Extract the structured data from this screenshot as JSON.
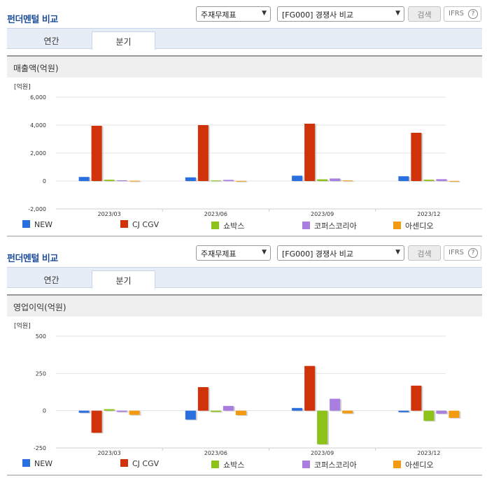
{
  "colors": {
    "NEW": "#2a6fe0",
    "CJ CGV": "#d0320a",
    "쇼박스": "#8cc21a",
    "코퍼스코리아": "#a97ee0",
    "아센디오": "#f29a10"
  },
  "panels": [
    {
      "title": "펀더멘털 비교",
      "select_item": "주재무제표",
      "select_compare": "[FG000] 경쟁사 비교",
      "search_label": "검색",
      "ifrs_label": "IFRS",
      "help_glyph": "?",
      "tabs": [
        "연간",
        "분기"
      ],
      "active_tab": "분기",
      "chart_heading": "매출액(억원)",
      "unit_label": "[억원]"
    },
    {
      "title": "펀더멘털 비교",
      "select_item": "주재무제표",
      "select_compare": "[FG000] 경쟁사 비교",
      "search_label": "검색",
      "ifrs_label": "IFRS",
      "help_glyph": "?",
      "tabs": [
        "연간",
        "분기"
      ],
      "active_tab": "분기",
      "chart_heading": "영업이익(억원)",
      "unit_label": "[억원]"
    }
  ],
  "chart_data": [
    {
      "type": "bar",
      "title": "매출액(억원)",
      "unit": "[억원]",
      "categories": [
        "2023/03",
        "2023/06",
        "2023/09",
        "2023/12"
      ],
      "ylim": [
        -2000,
        6000
      ],
      "yticks": [
        6000,
        4000,
        2000,
        0,
        -2000
      ],
      "ytick_labels": [
        "6,000",
        "4,000",
        "2,000",
        "0",
        "-2,000"
      ],
      "grid": true,
      "legend": "bottom",
      "series": [
        {
          "name": "NEW",
          "values": [
            290,
            260,
            380,
            340
          ]
        },
        {
          "name": "CJ CGV",
          "values": [
            3950,
            4000,
            4100,
            3450
          ]
        },
        {
          "name": "쇼박스",
          "values": [
            90,
            40,
            120,
            90
          ]
        },
        {
          "name": "코퍼스코리아",
          "values": [
            50,
            80,
            180,
            130
          ]
        },
        {
          "name": "아센디오",
          "values": [
            20,
            10,
            40,
            10
          ]
        }
      ]
    },
    {
      "type": "bar",
      "title": "영업이익(억원)",
      "unit": "[억원]",
      "categories": [
        "2023/03",
        "2023/06",
        "2023/09",
        "2023/12"
      ],
      "ylim": [
        -250,
        500
      ],
      "yticks": [
        500,
        250,
        0,
        -250
      ],
      "ytick_labels": [
        "500",
        "250",
        "0",
        "-250"
      ],
      "grid": true,
      "legend": "bottom",
      "series": [
        {
          "name": "NEW",
          "values": [
            -14,
            -60,
            18,
            -10
          ]
        },
        {
          "name": "CJ CGV",
          "values": [
            -148,
            158,
            300,
            168
          ]
        },
        {
          "name": "쇼박스",
          "values": [
            10,
            -8,
            -225,
            -68
          ]
        },
        {
          "name": "코퍼스코리아",
          "values": [
            -8,
            32,
            80,
            -20
          ]
        },
        {
          "name": "아센디오",
          "values": [
            -28,
            -30,
            -18,
            -48
          ]
        }
      ]
    }
  ]
}
